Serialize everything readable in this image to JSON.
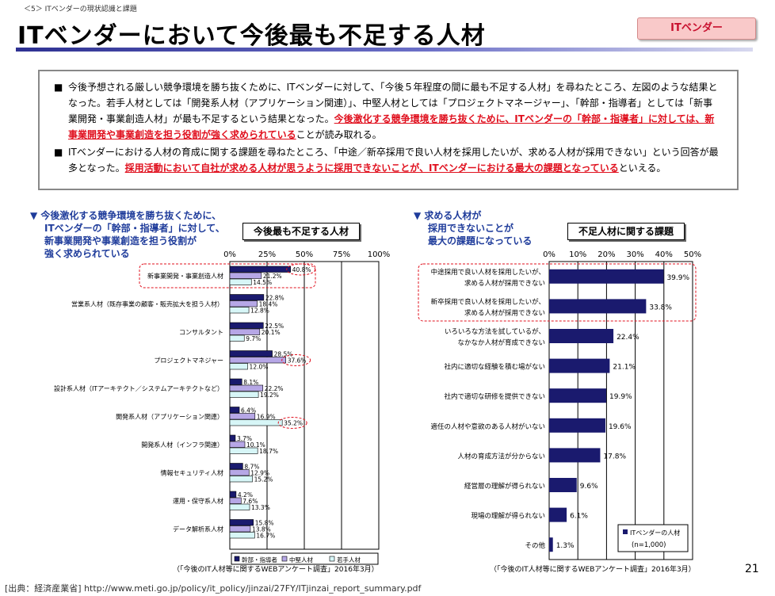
{
  "header": {
    "section": "＜5＞ ITベンダーの現状認識と課題",
    "title": "ITベンダーにおいて今後最も不足する人材",
    "badge": "ITベンダー"
  },
  "summary": {
    "b1_prefix": "今後予想される厳しい競争環境を勝ち抜くために、ITベンダーに対して、「今後５年程度の間に最も不足する人材」を尋ねたところ、左図のような結果となった。若手人材としては「開発系人材（アプリケーション関連）」、中堅人材としては「プロジェクトマネージャー」、「幹部・指導者」としては「新事業開発・事業創造人材」が最も不足するという結果となった。",
    "b1_red": "今後激化する競争環境を勝ち抜くために、ITベンダーの「幹部・指導者」に対しては、新事業開発や事業創造を担う役割が強く求められている",
    "b1_suffix": "ことが読み取れる。",
    "b2_prefix": "ITベンダーにおける人材の育成に関する課題を尋ねたところ、「中途／新卒採用で良い人材を採用したいが、求める人材が採用できない」という回答が最多となった。",
    "b2_red": "採用活動において自社が求める人材が思うように採用できないことが、ITベンダーにおける最大の課題となっている",
    "b2_suffix": "といえる。",
    "bullet": "■"
  },
  "left_note": {
    "marker": "▼",
    "l1": "今後激化する競争環境を勝ち抜くために、",
    "l2": "ITベンダーの「幹部・指導者」に対して、",
    "l3": "新事業開発や事業創造を担う役割が",
    "l4": "強く求められている"
  },
  "right_note": {
    "marker": "▼",
    "l1": "求める人材が",
    "l2": "採用できないことが",
    "l3": "最大の課題になっている"
  },
  "left_chart_title": "今後最も不足する人材",
  "right_chart_title": "不足人材に関する課題",
  "left_survey": "（「今後のIT人材等に関するWEBアンケート調査」2016年3月）",
  "right_survey": "（「今後のIT人材等に関するWEBアンケート調査」2016年3月）",
  "right_legend": {
    "name": "ITベンダーの人材",
    "n": "(n=1,000)"
  },
  "footer": {
    "source": "[出典：経済産業省] http://www.meti.go.jp/policy/it_policy/jinzai/27FY/ITjinzai_report_summary.pdf",
    "page": "21"
  },
  "colors": {
    "navy": "#1a1a6e",
    "violet": "#b6a7e6",
    "cyan": "#d7f6f7",
    "red": "#e0101e",
    "title_blue": "#1f3c9b"
  },
  "chart_data": [
    {
      "type": "bar",
      "orientation": "horizontal",
      "title": "今後最も不足する人材",
      "xlim": [
        0,
        100
      ],
      "xticks": [
        "0%",
        "25%",
        "50%",
        "75%",
        "100%"
      ],
      "categories": [
        "新事業開発・事業創造人材",
        "営業系人材（既存事業の顧客・販売拡大を担う人材）",
        "コンサルタント",
        "プロジェクトマネジャー",
        "設計系人材（ITアーキテクト／システムアーキテクトなど）",
        "開発系人材（アプリケーション関連）",
        "開発系人材（インフラ関連）",
        "情報セキュリティ人材",
        "運用・保守系人材",
        "データ解析系人材"
      ],
      "series": [
        {
          "name": "幹部・指導者",
          "values": [
            40.8,
            22.8,
            22.5,
            28.5,
            8.1,
            6.4,
            3.7,
            8.7,
            4.2,
            15.8
          ]
        },
        {
          "name": "中堅人材",
          "values": [
            21.2,
            18.4,
            20.1,
            37.6,
            22.2,
            16.9,
            10.1,
            12.9,
            7.6,
            13.8
          ]
        },
        {
          "name": "若手人材",
          "values": [
            14.5,
            12.8,
            9.7,
            12.0,
            19.2,
            35.2,
            18.7,
            15.2,
            13.3,
            16.7
          ]
        }
      ],
      "highlighted": [
        "40.8%",
        "37.6%",
        "35.2%"
      ]
    },
    {
      "type": "bar",
      "orientation": "horizontal",
      "title": "不足人材に関する課題",
      "xlim": [
        0,
        50
      ],
      "xticks": [
        "0%",
        "10%",
        "20%",
        "30%",
        "40%",
        "50%"
      ],
      "categories": [
        [
          "中途採用で良い人材を採用したいが、",
          "求める人材が採用できない"
        ],
        [
          "新卒採用で良い人材を採用したいが、",
          "求める人材が採用できない"
        ],
        [
          "いろいろな方法を試しているが、",
          "なかなか人材が育成できない"
        ],
        [
          "社内に適切な経験を積む場がない"
        ],
        [
          "社内で適切な研修を提供できない"
        ],
        [
          "適任の人材や意欲のある人材がいない"
        ],
        [
          "人材の育成方法が分からない"
        ],
        [
          "経営層の理解が得られない"
        ],
        [
          "現場の理解が得られない"
        ],
        [
          "その他"
        ]
      ],
      "series": [
        {
          "name": "ITベンダーの人材",
          "values": [
            39.9,
            33.8,
            22.4,
            21.1,
            19.9,
            19.6,
            17.8,
            9.6,
            6.1,
            1.3
          ]
        }
      ]
    }
  ]
}
